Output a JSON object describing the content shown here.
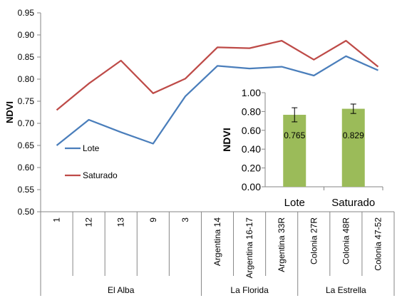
{
  "chart_data": [
    {
      "type": "line",
      "ylabel": "NDVI",
      "ylim": [
        0.5,
        0.95
      ],
      "yticks": [
        "0.50",
        "0.55",
        "0.60",
        "0.65",
        "0.70",
        "0.75",
        "0.80",
        "0.85",
        "0.90",
        "0.95"
      ],
      "categories": [
        "1",
        "12",
        "13",
        "9",
        "3",
        "Argentina 14",
        "Argentina 16-17",
        "Argentina 33R",
        "Colonia 27R",
        "Colonia 48R",
        "Colonia 47-52"
      ],
      "groups": [
        {
          "label": "El Alba",
          "count": 5
        },
        {
          "label": "La Florida",
          "count": 3
        },
        {
          "label": "La Estrella",
          "count": 3
        }
      ],
      "grid": false,
      "series": [
        {
          "name": "Lote",
          "color": "#4a7ebb",
          "values": [
            0.65,
            0.708,
            0.68,
            0.654,
            0.761,
            0.83,
            0.824,
            0.828,
            0.808,
            0.852,
            0.82
          ]
        },
        {
          "name": "Saturado",
          "color": "#be4b48",
          "values": [
            0.73,
            0.79,
            0.842,
            0.768,
            0.801,
            0.872,
            0.87,
            0.887,
            0.844,
            0.887,
            0.828
          ]
        }
      ]
    },
    {
      "type": "bar",
      "ylabel": "NDVI",
      "ylim": [
        0.0,
        1.0
      ],
      "yticks": [
        "0.00",
        "0.20",
        "0.40",
        "0.60",
        "0.80",
        "1.00"
      ],
      "categories": [
        "Lote",
        "Saturado"
      ],
      "values": [
        0.765,
        0.829
      ],
      "value_labels": [
        "0.765",
        "0.829"
      ],
      "error": [
        0.075,
        0.05
      ],
      "bar_color": "#9bbb59",
      "grid": false
    }
  ]
}
